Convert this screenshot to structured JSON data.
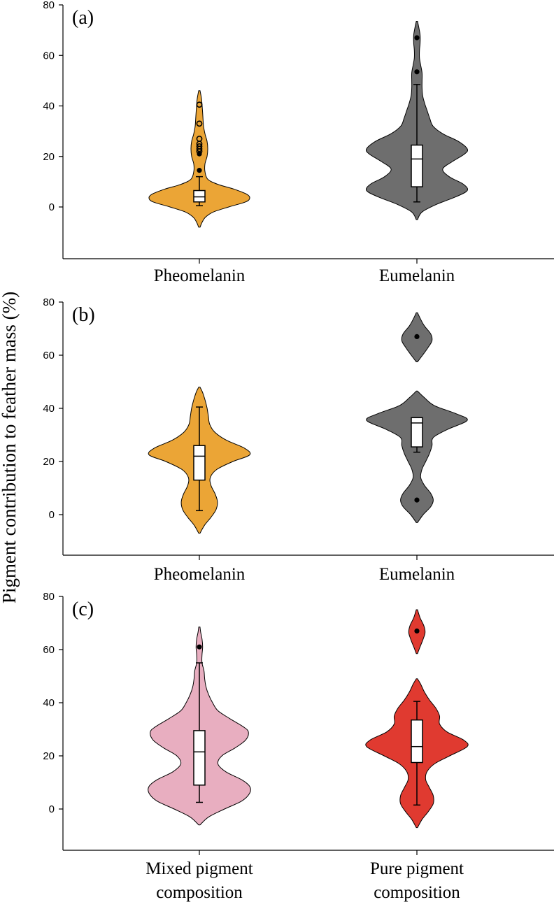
{
  "chart_data": {
    "type": "violin",
    "ylabel": "Pigment contribution to feather mass (%)",
    "panels": [
      {
        "label": "(a)",
        "ylim": [
          -20,
          80
        ],
        "yticks": [
          0,
          20,
          40,
          60,
          80
        ],
        "groups": [
          {
            "name": "Pheomelanin",
            "color": "#EBA536",
            "box": {
              "whisker_low": 0.5,
              "q1": 2,
              "median": 4,
              "q3": 6.5,
              "whisker_high": 12
            },
            "outliers_filled": [
              14.5,
              21
            ],
            "outliers_open": [
              22,
              23,
              24,
              25,
              27,
              33,
              40.5
            ],
            "density": [
              [
                -8,
                1
              ],
              [
                -6,
                4
              ],
              [
                -4,
                9
              ],
              [
                -2,
                20
              ],
              [
                0,
                42
              ],
              [
                2,
                66
              ],
              [
                3.5,
                72
              ],
              [
                5,
                68
              ],
              [
                7,
                50
              ],
              [
                9,
                26
              ],
              [
                11,
                12
              ],
              [
                14,
                8
              ],
              [
                17,
                8
              ],
              [
                20,
                11
              ],
              [
                23,
                12
              ],
              [
                26,
                11
              ],
              [
                29,
                8
              ],
              [
                32,
                6
              ],
              [
                36,
                5
              ],
              [
                40,
                4
              ],
              [
                43,
                3
              ],
              [
                46,
                1
              ]
            ]
          },
          {
            "name": "Eumelanin",
            "color": "#6E6E6E",
            "box": {
              "whisker_low": 2,
              "q1": 8,
              "median": 19,
              "q3": 24.5,
              "whisker_high": 48.5
            },
            "outliers_filled": [
              53.5,
              67
            ],
            "outliers_open": [],
            "density": [
              [
                -5,
                1
              ],
              [
                -2,
                8
              ],
              [
                1,
                30
              ],
              [
                4,
                60
              ],
              [
                6.5,
                78
              ],
              [
                9,
                72
              ],
              [
                12,
                50
              ],
              [
                15,
                40
              ],
              [
                18,
                55
              ],
              [
                21,
                74
              ],
              [
                23,
                78
              ],
              [
                26,
                64
              ],
              [
                29,
                40
              ],
              [
                32,
                25
              ],
              [
                35,
                20
              ],
              [
                38,
                16
              ],
              [
                41,
                12
              ],
              [
                44,
                9
              ],
              [
                47,
                8
              ],
              [
                50,
                8
              ],
              [
                53,
                8
              ],
              [
                56,
                6
              ],
              [
                59,
                4
              ],
              [
                62,
                4
              ],
              [
                65,
                5
              ],
              [
                68,
                5
              ],
              [
                71,
                3
              ],
              [
                73.5,
                1
              ]
            ]
          }
        ],
        "categories": [
          "Pheomelanin",
          "Eumelanin"
        ]
      },
      {
        "label": "(b)",
        "ylim": [
          -15,
          80
        ],
        "yticks": [
          0,
          20,
          40,
          60,
          80
        ],
        "groups": [
          {
            "name": "Pheomelanin",
            "color": "#EBA536",
            "box": {
              "whisker_low": 1.5,
              "q1": 13,
              "median": 22,
              "q3": 26,
              "whisker_high": 40.5
            },
            "outliers_filled": [],
            "outliers_open": [],
            "density": [
              [
                -7,
                1
              ],
              [
                -4,
                8
              ],
              [
                -1,
                18
              ],
              [
                2,
                26
              ],
              [
                5,
                28
              ],
              [
                8,
                24
              ],
              [
                11,
                18
              ],
              [
                14,
                17
              ],
              [
                17,
                27
              ],
              [
                20,
                52
              ],
              [
                22.5,
                78
              ],
              [
                25,
                70
              ],
              [
                28,
                42
              ],
              [
                31,
                24
              ],
              [
                34,
                16
              ],
              [
                37,
                14
              ],
              [
                40,
                12
              ],
              [
                43,
                9
              ],
              [
                46,
                5
              ],
              [
                48,
                1
              ]
            ]
          },
          {
            "name": "Eumelanin",
            "color": "#6E6E6E",
            "box": {
              "whisker_low": 23.5,
              "q1": 25.5,
              "median": 34.5,
              "q3": 36.5,
              "whisker_high": 36.5
            },
            "outliers_filled": [
              5.5,
              67
            ],
            "outliers_open": [],
            "density": [
              [
                -3,
                1
              ],
              [
                0,
                10
              ],
              [
                3,
                22
              ],
              [
                5.5,
                26
              ],
              [
                8,
                22
              ],
              [
                11,
                12
              ],
              [
                14,
                6
              ],
              [
                17,
                8
              ],
              [
                20,
                14
              ],
              [
                23,
                20
              ],
              [
                26,
                24
              ],
              [
                29,
                26
              ],
              [
                32,
                48
              ],
              [
                35.5,
                80
              ],
              [
                38,
                62
              ],
              [
                41,
                28
              ],
              [
                44,
                12
              ],
              [
                46.5,
                1
              ],
              [
                57.5,
                1
              ],
              [
                60,
                9
              ],
              [
                63,
                18
              ],
              [
                65.5,
                24
              ],
              [
                68,
                22
              ],
              [
                71,
                12
              ],
              [
                73.5,
                6
              ],
              [
                76,
                1
              ]
            ]
          }
        ],
        "categories": [
          "Pheomelanin",
          "Eumelanin"
        ]
      },
      {
        "label": "(c)",
        "ylim": [
          -15,
          80
        ],
        "yticks": [
          0,
          20,
          40,
          60,
          80
        ],
        "groups": [
          {
            "name": "Mixed pigment composition",
            "color": "#E8AEC0",
            "box": {
              "whisker_low": 2.5,
              "q1": 9,
              "median": 21.5,
              "q3": 29.5,
              "whisker_high": 55
            },
            "outliers_filled": [
              61
            ],
            "outliers_open": [],
            "density": [
              [
                -6,
                1
              ],
              [
                -3,
                14
              ],
              [
                0,
                38
              ],
              [
                3,
                64
              ],
              [
                6,
                76
              ],
              [
                8.5,
                76
              ],
              [
                11,
                64
              ],
              [
                14,
                40
              ],
              [
                17,
                28
              ],
              [
                20,
                34
              ],
              [
                23,
                54
              ],
              [
                26,
                70
              ],
              [
                29,
                74
              ],
              [
                31,
                66
              ],
              [
                34,
                46
              ],
              [
                37,
                28
              ],
              [
                40,
                20
              ],
              [
                43,
                14
              ],
              [
                46,
                10
              ],
              [
                49,
                8
              ],
              [
                52,
                7
              ],
              [
                55,
                4
              ],
              [
                58,
                4
              ],
              [
                61,
                5
              ],
              [
                64,
                4
              ],
              [
                66.5,
                2
              ],
              [
                68.5,
                1
              ]
            ]
          },
          {
            "name": "Pure pigment composition",
            "color": "#E03A30",
            "box": {
              "whisker_low": 1.5,
              "q1": 17.5,
              "median": 23.5,
              "q3": 33.5,
              "whisker_high": 40.5
            },
            "outliers_filled": [
              67
            ],
            "outliers_open": [],
            "density": [
              [
                -7,
                1
              ],
              [
                -4,
                8
              ],
              [
                -1,
                18
              ],
              [
                2,
                26
              ],
              [
                5,
                26
              ],
              [
                8,
                20
              ],
              [
                11,
                14
              ],
              [
                14,
                16
              ],
              [
                17,
                28
              ],
              [
                20,
                52
              ],
              [
                23.5,
                80
              ],
              [
                26,
                74
              ],
              [
                29,
                48
              ],
              [
                32,
                36
              ],
              [
                35,
                36
              ],
              [
                38,
                30
              ],
              [
                41,
                20
              ],
              [
                44,
                12
              ],
              [
                47,
                6
              ],
              [
                49,
                1
              ],
              [
                58.5,
                1
              ],
              [
                61,
                5
              ],
              [
                64,
                10
              ],
              [
                66.5,
                13
              ],
              [
                69,
                11
              ],
              [
                72,
                5
              ],
              [
                75,
                1
              ]
            ]
          }
        ],
        "categories": [
          "Mixed pigment\ncomposition",
          "Pure pigment\ncomposition"
        ]
      }
    ]
  }
}
